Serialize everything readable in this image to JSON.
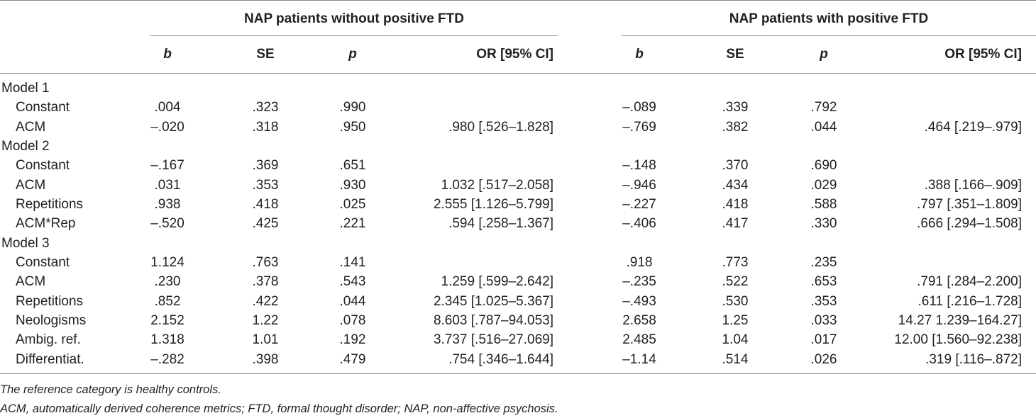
{
  "groups": [
    "NAP patients without positive FTD",
    "NAP patients with positive FTD"
  ],
  "columns": [
    "b",
    "SE",
    "p",
    "OR [95% CI]",
    "b",
    "SE",
    "p",
    "OR [95% CI]"
  ],
  "rows": [
    {
      "type": "model",
      "label": "Model 1"
    },
    {
      "type": "data",
      "label": "Constant",
      "cells": [
        ".004",
        ".323",
        ".990",
        "",
        "–.089",
        ".339",
        ".792",
        ""
      ]
    },
    {
      "type": "data",
      "label": "ACM",
      "cells": [
        "–.020",
        ".318",
        ".950",
        ".980 [.526–1.828]",
        "–.769",
        ".382",
        ".044",
        ".464 [.219–.979]"
      ]
    },
    {
      "type": "model",
      "label": "Model 2"
    },
    {
      "type": "data",
      "label": "Constant",
      "cells": [
        "–.167",
        ".369",
        ".651",
        "",
        "–.148",
        ".370",
        ".690",
        ""
      ]
    },
    {
      "type": "data",
      "label": "ACM",
      "cells": [
        ".031",
        ".353",
        ".930",
        "1.032 [.517–2.058]",
        "–.946",
        ".434",
        ".029",
        ".388 [.166–.909]"
      ]
    },
    {
      "type": "data",
      "label": "Repetitions",
      "cells": [
        ".938",
        ".418",
        ".025",
        "2.555 [1.126–5.799]",
        "–.227",
        ".418",
        ".588",
        ".797 [.351–1.809]"
      ]
    },
    {
      "type": "data",
      "label": "ACM*Rep",
      "cells": [
        "–.520",
        ".425",
        ".221",
        ".594 [.258–1.367]",
        "–.406",
        ".417",
        ".330",
        ".666 [.294–1.508]"
      ]
    },
    {
      "type": "model",
      "label": "Model 3"
    },
    {
      "type": "data",
      "label": "Constant",
      "cells": [
        "1.124",
        ".763",
        ".141",
        "",
        ".918",
        ".773",
        ".235",
        ""
      ]
    },
    {
      "type": "data",
      "label": "ACM",
      "cells": [
        ".230",
        ".378",
        ".543",
        "1.259 [.599–2.642]",
        "–.235",
        ".522",
        ".653",
        ".791 [.284–2.200]"
      ]
    },
    {
      "type": "data",
      "label": "Repetitions",
      "cells": [
        ".852",
        ".422",
        ".044",
        "2.345 [1.025–5.367]",
        "–.493",
        ".530",
        ".353",
        ".611 [.216–1.728]"
      ]
    },
    {
      "type": "data",
      "label": "Neologisms",
      "cells": [
        "2.152",
        "1.22",
        ".078",
        "8.603 [.787–94.053]",
        "2.658",
        "1.25",
        ".033",
        "14.27 1.239–164.27]"
      ]
    },
    {
      "type": "data",
      "label": "Ambig. ref.",
      "cells": [
        "1.318",
        "1.01",
        ".192",
        "3.737 [.516–27.069]",
        "2.485",
        "1.04",
        ".017",
        "12.00 [1.560–92.238]"
      ]
    },
    {
      "type": "data",
      "label": "Differentiat.",
      "cells": [
        "–.282",
        ".398",
        ".479",
        ".754 [.346–1.644]",
        "–1.14",
        ".514",
        ".026",
        ".319 [.116–.872]"
      ]
    }
  ],
  "footnotes": [
    "The reference category is healthy controls.",
    "ACM, automatically derived coherence metrics; FTD, formal thought disorder; NAP, non-affective psychosis."
  ]
}
